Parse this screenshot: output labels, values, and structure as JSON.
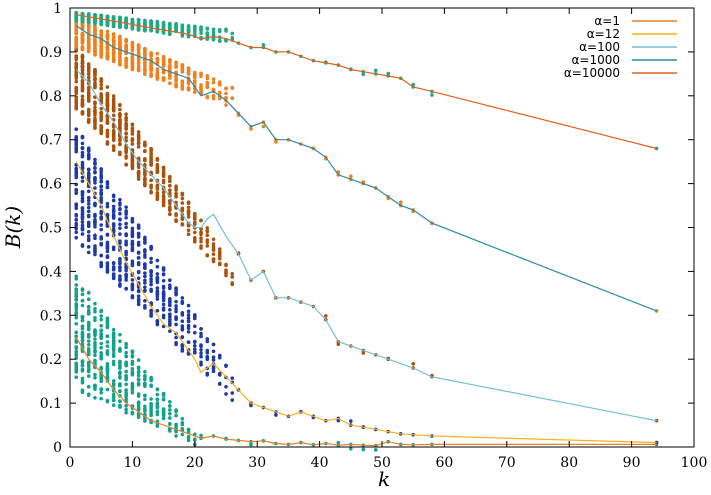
{
  "chart_data": {
    "type": "scatter",
    "xlabel": "k",
    "ylabel": "B(k)",
    "xlim": [
      0,
      100
    ],
    "ylim": [
      0,
      1
    ],
    "xticks": [
      0,
      10,
      20,
      30,
      40,
      50,
      60,
      70,
      80,
      90,
      100
    ],
    "yticks": [
      0,
      0.1,
      0.2,
      0.3,
      0.4,
      0.5,
      0.6,
      0.7,
      0.8,
      0.9,
      1
    ],
    "ytick_labels": [
      "0",
      "0.1",
      "0.2",
      "0.3",
      "0.4",
      "0.5",
      "0.6",
      "0.7",
      "0.8",
      "0.9",
      "1"
    ],
    "legend_position": "top-right",
    "legend": [
      {
        "label": "α=1",
        "color": "#e8812a"
      },
      {
        "label": "α=12",
        "color": "#f2b31e"
      },
      {
        "label": "α=100",
        "color": "#74c0d6"
      },
      {
        "label": "α=1000",
        "color": "#2a8ba4"
      },
      {
        "label": "α=10000",
        "color": "#e2601d"
      }
    ],
    "series": [
      {
        "name": "α=1",
        "line_color": "#e8812a",
        "point_color": "#13a08c",
        "points_dense": {
          "k_range": [
            1,
            20
          ],
          "upper": [
            0.39,
            0.03
          ],
          "lower": [
            0.13,
            0.005
          ]
        },
        "line": {
          "x": [
            1,
            3,
            5,
            7,
            9,
            11,
            13,
            15,
            17,
            19,
            21,
            23,
            25,
            27,
            29,
            31,
            33,
            35,
            37,
            39,
            41,
            43,
            45,
            47,
            49,
            51,
            53,
            55,
            58,
            94
          ],
          "y": [
            0.25,
            0.2,
            0.17,
            0.13,
            0.1,
            0.08,
            0.06,
            0.05,
            0.04,
            0.03,
            0.02,
            0.025,
            0.018,
            0.015,
            0.012,
            0.014,
            0.008,
            0.006,
            0.01,
            0.005,
            0.008,
            0.004,
            0.006,
            0.004,
            0.003,
            0.012,
            0.006,
            0.005,
            0.006,
            0.006
          ]
        }
      },
      {
        "name": "α=12",
        "line_color": "#f2b31e",
        "point_color": "#1f39a6",
        "points_dense": {
          "k_range": [
            1,
            26
          ],
          "upper": [
            0.73,
            0.17
          ],
          "lower": [
            0.47,
            0.1
          ]
        },
        "line": {
          "x": [
            1,
            3,
            5,
            7,
            9,
            11,
            13,
            15,
            17,
            19,
            20,
            21,
            22,
            23,
            25,
            27,
            29,
            31,
            33,
            35,
            37,
            39,
            41,
            43,
            45,
            47,
            49,
            51,
            53,
            55,
            58,
            94
          ],
          "y": [
            0.65,
            0.6,
            0.55,
            0.48,
            0.42,
            0.37,
            0.32,
            0.28,
            0.26,
            0.22,
            0.2,
            0.17,
            0.18,
            0.19,
            0.16,
            0.13,
            0.1,
            0.09,
            0.08,
            0.07,
            0.08,
            0.07,
            0.06,
            0.065,
            0.05,
            0.045,
            0.04,
            0.035,
            0.03,
            0.028,
            0.025,
            0.01
          ]
        }
      },
      {
        "name": "α=100",
        "line_color": "#74c0d6",
        "point_color": "#a8520d",
        "points_dense": {
          "k_range": [
            1,
            26
          ],
          "upper": [
            0.92,
            0.42
          ],
          "lower": [
            0.77,
            0.37
          ]
        },
        "line": {
          "x": [
            1,
            3,
            5,
            7,
            9,
            11,
            13,
            15,
            17,
            19,
            20,
            21,
            22,
            23,
            25,
            27,
            29,
            31,
            33,
            35,
            37,
            39,
            41,
            43,
            45,
            47,
            49,
            51,
            55,
            58,
            94
          ],
          "y": [
            0.86,
            0.83,
            0.78,
            0.74,
            0.69,
            0.65,
            0.62,
            0.59,
            0.55,
            0.51,
            0.5,
            0.5,
            0.52,
            0.53,
            0.48,
            0.44,
            0.38,
            0.4,
            0.34,
            0.34,
            0.33,
            0.32,
            0.29,
            0.24,
            0.23,
            0.22,
            0.21,
            0.2,
            0.18,
            0.16,
            0.06
          ]
        }
      },
      {
        "name": "α=1000",
        "line_color": "#2a8ba4",
        "point_color": "#f07f1e",
        "points_dense": {
          "k_range": [
            1,
            26
          ],
          "upper": [
            0.98,
            0.82
          ],
          "lower": [
            0.91,
            0.77
          ]
        },
        "line": {
          "x": [
            1,
            3,
            5,
            7,
            9,
            11,
            13,
            15,
            17,
            19,
            21,
            23,
            25,
            27,
            29,
            31,
            33,
            35,
            37,
            39,
            41,
            43,
            45,
            47,
            49,
            51,
            53,
            55,
            58,
            94
          ],
          "y": [
            0.96,
            0.94,
            0.93,
            0.91,
            0.9,
            0.89,
            0.88,
            0.86,
            0.85,
            0.84,
            0.8,
            0.81,
            0.79,
            0.76,
            0.73,
            0.74,
            0.7,
            0.7,
            0.69,
            0.68,
            0.66,
            0.62,
            0.61,
            0.6,
            0.59,
            0.57,
            0.55,
            0.54,
            0.51,
            0.31
          ]
        }
      },
      {
        "name": "α=10000",
        "line_color": "#e2601d",
        "point_color": "#1ea884",
        "points_dense": {
          "k_range": [
            1,
            26
          ],
          "upper": [
            0.99,
            0.95
          ],
          "lower": [
            0.97,
            0.92
          ]
        },
        "line": {
          "x": [
            1,
            3,
            5,
            7,
            9,
            11,
            13,
            15,
            17,
            19,
            21,
            23,
            25,
            27,
            29,
            31,
            33,
            35,
            37,
            39,
            41,
            43,
            45,
            47,
            49,
            51,
            53,
            55,
            58,
            94
          ],
          "y": [
            0.985,
            0.98,
            0.975,
            0.97,
            0.965,
            0.96,
            0.955,
            0.95,
            0.945,
            0.94,
            0.93,
            0.935,
            0.93,
            0.92,
            0.91,
            0.91,
            0.9,
            0.9,
            0.89,
            0.88,
            0.875,
            0.87,
            0.86,
            0.855,
            0.85,
            0.845,
            0.84,
            0.82,
            0.81,
            0.68
          ]
        }
      }
    ]
  }
}
